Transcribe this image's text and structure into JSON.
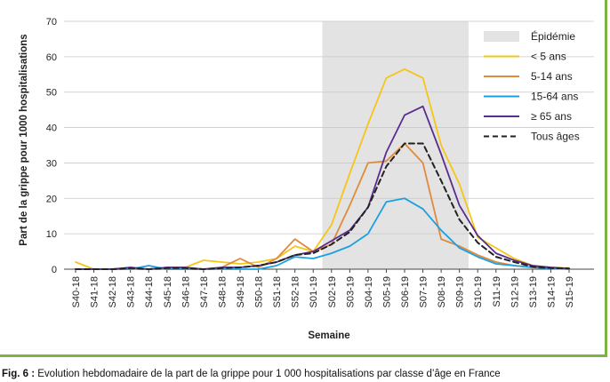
{
  "chart_data": {
    "type": "line",
    "xlabel": "Semaine",
    "ylabel": "Part de la grippe pour 1000 hospitalisations",
    "ylim": [
      0,
      70
    ],
    "yticks": [
      0,
      10,
      20,
      30,
      40,
      50,
      60,
      70
    ],
    "grid": "horizontal",
    "legend_position": "top-right",
    "categories": [
      "S40-18",
      "S41-18",
      "S42-18",
      "S43-18",
      "S44-18",
      "S45-18",
      "S46-18",
      "S47-18",
      "S48-18",
      "S49-18",
      "S50-18",
      "S51-18",
      "S52-18",
      "S01-19",
      "S02-19",
      "S03-19",
      "S04-19",
      "S05-19",
      "S06-19",
      "S07-19",
      "S08-19",
      "S09-19",
      "S10-19",
      "S11-19",
      "S12-19",
      "S13-19",
      "S14-19",
      "S15-19"
    ],
    "shaded_region": {
      "label": "Épidémie",
      "start": "S02-19",
      "end": "S09-19",
      "color": "#e3e3e3"
    },
    "series": [
      {
        "name": "< 5 ans",
        "color": "#f5c518",
        "dash": false,
        "values": [
          2,
          0,
          0,
          0,
          0,
          0.5,
          0.5,
          2.5,
          2,
          1.5,
          2,
          3,
          6.5,
          5,
          12.5,
          27,
          41,
          54,
          56.5,
          54,
          35,
          24,
          9,
          6,
          3,
          1,
          0.5,
          0.3
        ]
      },
      {
        "name": "5-14 ans",
        "color": "#e08a3c",
        "dash": false,
        "values": [
          0,
          0,
          0,
          0,
          0,
          0,
          0,
          0,
          0.5,
          3,
          0.5,
          3,
          8.5,
          5,
          7,
          18,
          30,
          30.5,
          35.5,
          30,
          8.5,
          6.5,
          4,
          2,
          1,
          0.5,
          0.3,
          0.2
        ]
      },
      {
        "name": "15-64 ans",
        "color": "#1ba1e2",
        "dash": false,
        "values": [
          0,
          0,
          0,
          0,
          1,
          0,
          0,
          0,
          0,
          0,
          0,
          1,
          3.5,
          3,
          4.5,
          6.5,
          10,
          19,
          20,
          17,
          11,
          6,
          3.5,
          1.5,
          1,
          0.5,
          0.2,
          0
        ]
      },
      {
        "name": "≥ 65 ans",
        "color": "#5b2d8e",
        "dash": false,
        "values": [
          0,
          0,
          0,
          0.5,
          0,
          0.5,
          0.5,
          0,
          0.5,
          0.5,
          1,
          2,
          4,
          5,
          8,
          11,
          17.5,
          33,
          43.5,
          46,
          32.5,
          18,
          9.5,
          4.5,
          2.5,
          1,
          0.5,
          0.2
        ]
      },
      {
        "name": "Tous âges",
        "color": "#222222",
        "dash": true,
        "values": [
          0,
          0,
          0,
          0.3,
          0,
          0.3,
          0.3,
          0,
          0.3,
          0.5,
          1,
          2,
          4,
          4.5,
          7,
          10.5,
          17.5,
          29,
          35.5,
          35.5,
          25,
          14,
          7.5,
          3.5,
          2,
          0.7,
          0.3,
          0.2
        ]
      }
    ]
  },
  "caption": {
    "label": "Fig. 6 :",
    "text": " Évolution hebdomadaire de la part de la grippe pour 1 000 hospitalisations par classe d’âge en France"
  }
}
